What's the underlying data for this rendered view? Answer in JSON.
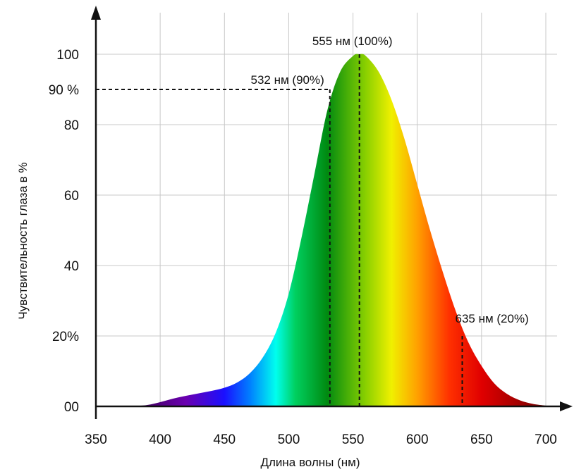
{
  "chart_data": {
    "type": "area",
    "xlabel": "Длина волны (нм)",
    "ylabel": "Чувствительность глаза в %",
    "xlim": [
      350,
      700
    ],
    "ylim": [
      0,
      100
    ],
    "grid": true,
    "x_ticks": [
      {
        "value": 350,
        "label": "350"
      },
      {
        "value": 400,
        "label": "400"
      },
      {
        "value": 450,
        "label": "450"
      },
      {
        "value": 500,
        "label": "500"
      },
      {
        "value": 550,
        "label": "550"
      },
      {
        "value": 600,
        "label": "600"
      },
      {
        "value": 650,
        "label": "650"
      },
      {
        "value": 700,
        "label": "700"
      }
    ],
    "y_ticks": [
      {
        "value": 0,
        "label": "00"
      },
      {
        "value": 20,
        "label": "20%"
      },
      {
        "value": 40,
        "label": "40"
      },
      {
        "value": 60,
        "label": "60"
      },
      {
        "value": 80,
        "label": "80"
      },
      {
        "value": 90,
        "label": "90 %"
      },
      {
        "value": 100,
        "label": "100"
      }
    ],
    "x": [
      380,
      390,
      400,
      410,
      420,
      430,
      440,
      450,
      460,
      470,
      480,
      490,
      500,
      510,
      520,
      530,
      540,
      550,
      555,
      560,
      570,
      580,
      590,
      600,
      610,
      620,
      630,
      640,
      650,
      660,
      670,
      680,
      690,
      700
    ],
    "values": [
      0.1,
      0.4,
      1.2,
      2.2,
      3.0,
      3.7,
      4.4,
      5.3,
      6.8,
      9.5,
      14,
      21,
      32,
      48,
      66,
      84,
      95,
      99.5,
      100,
      99.5,
      95,
      87,
      76,
      63,
      50,
      38,
      27,
      18,
      11.5,
      6.5,
      3.5,
      1.7,
      0.7,
      0.2
    ],
    "annotations": [
      {
        "x": 555,
        "y": 100,
        "label": "555 нм (100%)"
      },
      {
        "x": 532,
        "y": 90,
        "label": "532 нм (90%)"
      },
      {
        "x": 635,
        "y": 20,
        "label": "635 нм (20%)"
      }
    ],
    "spectrum_colors": [
      {
        "nm": 380,
        "color": "#3a0050"
      },
      {
        "nm": 420,
        "color": "#6a00b0"
      },
      {
        "nm": 450,
        "color": "#1a10ff"
      },
      {
        "nm": 470,
        "color": "#0080ff"
      },
      {
        "nm": 490,
        "color": "#00ffee"
      },
      {
        "nm": 505,
        "color": "#00d060"
      },
      {
        "nm": 530,
        "color": "#008a10"
      },
      {
        "nm": 560,
        "color": "#8ad000"
      },
      {
        "nm": 580,
        "color": "#f0f000"
      },
      {
        "nm": 600,
        "color": "#ffa000"
      },
      {
        "nm": 625,
        "color": "#ff3000"
      },
      {
        "nm": 650,
        "color": "#e00000"
      },
      {
        "nm": 680,
        "color": "#a00000"
      },
      {
        "nm": 700,
        "color": "#700000"
      }
    ]
  }
}
